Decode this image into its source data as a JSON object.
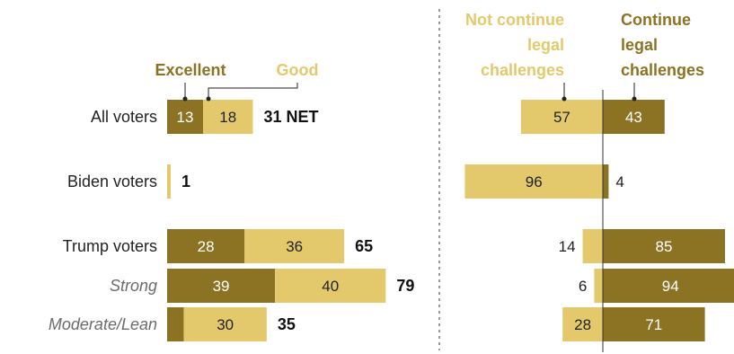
{
  "colors": {
    "dark": "#8c7324",
    "light": "#e3c96c",
    "net_text": "#111111",
    "divider": "#999999",
    "axis": "#333333"
  },
  "chart_data": [
    {
      "type": "bar",
      "stacked": true,
      "orientation": "horizontal",
      "legend": {
        "excellent": "Excellent",
        "good": "Good"
      },
      "categories": [
        "All voters",
        "Biden voters",
        "Trump voters",
        "Strong",
        "Moderate/Lean"
      ],
      "series": [
        {
          "name": "Excellent",
          "values": [
            13,
            0,
            28,
            39,
            6
          ],
          "labels": [
            "13",
            "",
            "28",
            "39",
            ""
          ]
        },
        {
          "name": "Good",
          "values": [
            18,
            1,
            36,
            40,
            30
          ],
          "labels": [
            "18",
            "",
            "36",
            "40",
            "30"
          ]
        }
      ],
      "net_labels": [
        "31 NET",
        "1",
        "65",
        "79",
        "35"
      ]
    },
    {
      "type": "bar",
      "diverging": true,
      "orientation": "horizontal",
      "legend": {
        "not_continue": [
          "Not continue",
          "legal",
          "challenges"
        ],
        "continue": [
          "Continue",
          "legal",
          "challenges"
        ]
      },
      "categories": [
        "All voters",
        "Biden voters",
        "Trump voters",
        "Strong",
        "Moderate/Lean"
      ],
      "series": [
        {
          "name": "Not continue legal challenges",
          "values": [
            57,
            96,
            14,
            6,
            28
          ]
        },
        {
          "name": "Continue legal challenges",
          "values": [
            43,
            4,
            85,
            94,
            71
          ]
        }
      ]
    }
  ]
}
